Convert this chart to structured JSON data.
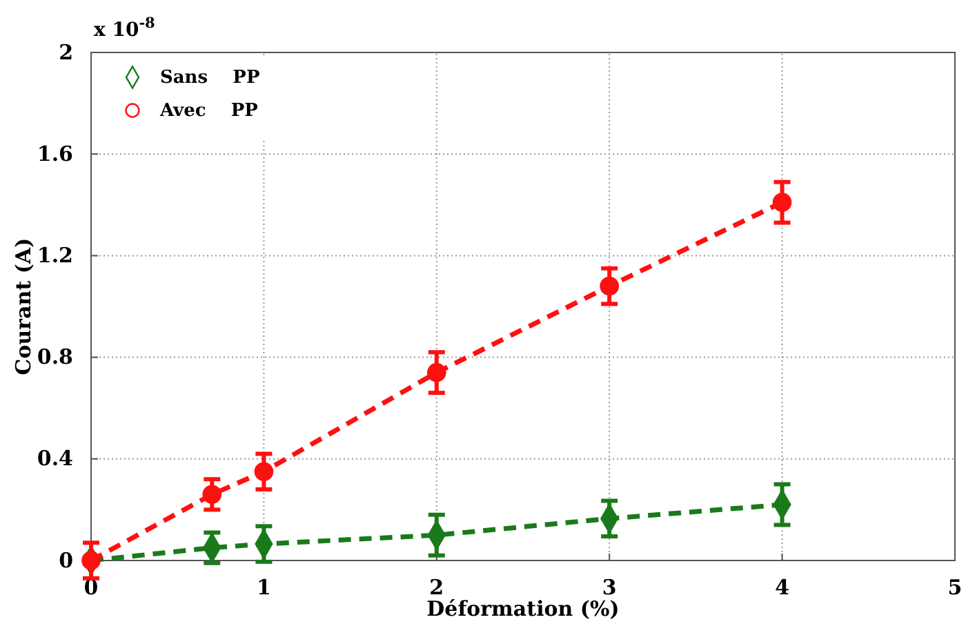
{
  "chart_data": {
    "type": "line",
    "xlabel": "Déformation (%)",
    "ylabel": "Courant (A)",
    "annotations": [
      "x 10$^{-8}$"
    ],
    "x": [
      0,
      0.7,
      1,
      2,
      3,
      4
    ],
    "xlim": [
      0,
      5
    ],
    "xticks": [
      0,
      1,
      2,
      3,
      4,
      5
    ],
    "ylim": [
      0,
      2
    ],
    "yticks": [
      0,
      0.4,
      0.8,
      1.2,
      1.6,
      2
    ],
    "grid": true,
    "legend": "top left",
    "line_style": "dashed",
    "series": [
      {
        "name": "Sans    PP",
        "color": "#1a7a1a",
        "marker": "diamond",
        "values": [
          0,
          0.05,
          0.065,
          0.1,
          0.165,
          0.22
        ],
        "errors": [
          null,
          0.06,
          0.07,
          0.08,
          0.07,
          0.08
        ]
      },
      {
        "name": "Avec    PP",
        "color": "#ff1010",
        "marker": "circle",
        "values": [
          0,
          0.26,
          0.35,
          0.74,
          1.08,
          1.41
        ],
        "errors": [
          0.07,
          0.06,
          0.07,
          0.08,
          0.07,
          0.08
        ]
      }
    ]
  }
}
